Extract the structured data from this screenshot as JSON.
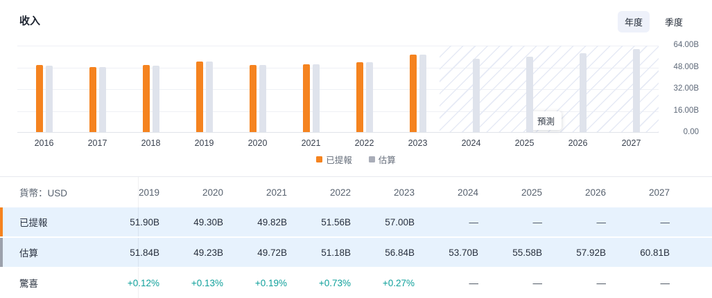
{
  "page": {
    "title": "收入"
  },
  "toolbar": {
    "annual_label": "年度",
    "quarterly_label": "季度"
  },
  "chart_data": {
    "type": "bar",
    "title": "收入",
    "categories": [
      "2016",
      "2017",
      "2018",
      "2019",
      "2020",
      "2021",
      "2022",
      "2023",
      "2024",
      "2025",
      "2026",
      "2027"
    ],
    "series": [
      {
        "name": "已提報",
        "color": "#f5831f",
        "legend_color": "#f5831f",
        "values": [
          49.2,
          48.0,
          49.3,
          51.9,
          49.3,
          49.82,
          51.56,
          57.0,
          null,
          null,
          null,
          null
        ]
      },
      {
        "name": "估算",
        "color": "#dfe3ec",
        "legend_color": "#a9adb8",
        "values": [
          49.0,
          47.8,
          48.9,
          51.84,
          49.23,
          49.72,
          51.18,
          56.84,
          53.7,
          55.58,
          57.92,
          60.81
        ]
      }
    ],
    "ylabel": "",
    "xlabel": "",
    "ylim": [
      0,
      64
    ],
    "y_ticks": [
      "64.00B",
      "48.00B",
      "32.00B",
      "16.00B",
      "0.00"
    ],
    "grid": true,
    "legend_position": "bottom",
    "forecast_label": "預測",
    "forecast_start_category": "2024"
  },
  "table": {
    "currency_label": "貨幣：USD",
    "columns": [
      "2019",
      "2020",
      "2021",
      "2022",
      "2023",
      "2024",
      "2025",
      "2026",
      "2027"
    ],
    "rows": [
      {
        "label": "已提報",
        "accent_color": "#f5831f",
        "type": "value",
        "values": [
          "51.90B",
          "49.30B",
          "49.82B",
          "51.56B",
          "57.00B",
          "—",
          "—",
          "—",
          "—"
        ]
      },
      {
        "label": "估算",
        "accent_color": "#9ca1ac",
        "type": "value",
        "values": [
          "51.84B",
          "49.23B",
          "49.72B",
          "51.18B",
          "56.84B",
          "53.70B",
          "55.58B",
          "57.92B",
          "60.81B"
        ]
      },
      {
        "label": "驚喜",
        "accent_color": null,
        "type": "percent",
        "values": [
          "+0.12%",
          "+0.13%",
          "+0.19%",
          "+0.73%",
          "+0.27%",
          "—",
          "—",
          "—",
          "—"
        ]
      }
    ]
  }
}
